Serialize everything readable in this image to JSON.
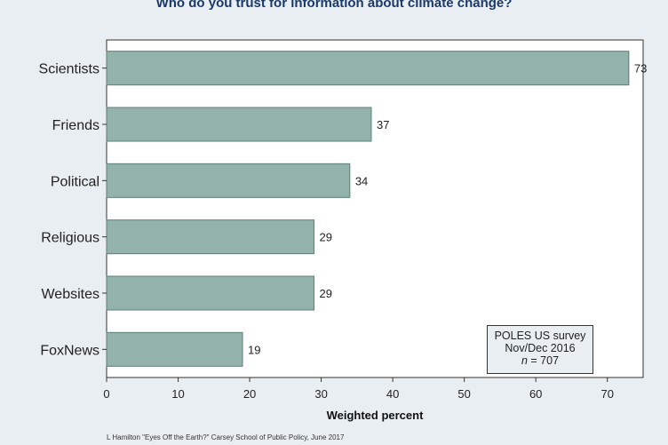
{
  "chart_data": {
    "type": "bar",
    "orientation": "horizontal",
    "title": "Who do you trust for information about climate change?",
    "categories": [
      "Scientists",
      "Friends",
      "Political",
      "Religious",
      "Websites",
      "FoxNews"
    ],
    "values": [
      73,
      37,
      34,
      29,
      29,
      19
    ],
    "xlabel": "Weighted percent",
    "xlim": [
      0,
      75
    ],
    "xticks": [
      "0",
      "10",
      "20",
      "30",
      "40",
      "50",
      "60",
      "70"
    ],
    "bar_color": "#93b3aa",
    "bar_edge_color": "#5e7e76",
    "grid": false
  },
  "note": {
    "line1": "POLES US survey",
    "line2": "Nov/Dec 2016",
    "n_label": "n",
    "n_value": "=  707"
  },
  "credit": "L Hamilton  \"Eyes Off the Earth?\" Carsey School of Public Policy, June 2017"
}
